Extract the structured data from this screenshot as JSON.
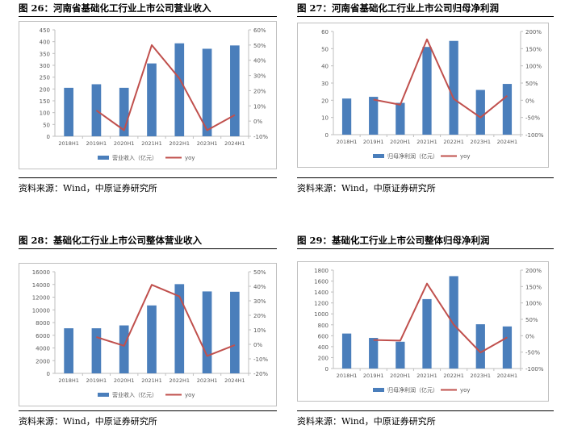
{
  "charts": [
    {
      "title": "图 26：河南省基础化工行业上市公司营业收入",
      "source": "资料来源：Wind，中原证券研究所",
      "chart_data": {
        "type": "bar",
        "categories": [
          "2018H1",
          "2019H1",
          "2020H1",
          "2021H1",
          "2022H1",
          "2023H1",
          "2024H1"
        ],
        "series": [
          {
            "name": "营业收入（亿元）",
            "type": "bar",
            "axis": "left",
            "values": [
              205,
              220,
              205,
              308,
              393,
              370,
              384
            ]
          },
          {
            "name": "yoy",
            "type": "line",
            "axis": "right",
            "values": [
              null,
              7,
              -6,
              50,
              28,
              -6,
              4
            ]
          }
        ],
        "ylim": [
          0,
          450
        ],
        "yticks": [
          0,
          50,
          100,
          150,
          200,
          250,
          300,
          350,
          400,
          450
        ],
        "y2lim": [
          -10,
          60
        ],
        "y2ticks": [
          -10,
          0,
          10,
          20,
          30,
          40,
          50,
          60
        ],
        "y2unit": "%",
        "grid": false,
        "legend": "bottom"
      }
    },
    {
      "title": "图 27：河南省基础化工行业上市公司归母净利润",
      "source": "资料来源：Wind，中原证券研究所",
      "chart_data": {
        "type": "bar",
        "categories": [
          "2018H1",
          "2019H1",
          "2020H1",
          "2021H1",
          "2022H1",
          "2023H1",
          "2024H1"
        ],
        "series": [
          {
            "name": "归母净利润（亿元）",
            "type": "bar",
            "axis": "left",
            "values": [
              21,
              22,
              18.5,
              51,
              54.5,
              26,
              29.5
            ]
          },
          {
            "name": "yoy",
            "type": "line",
            "axis": "right",
            "values": [
              null,
              2,
              -13,
              177,
              4,
              -50,
              13
            ]
          }
        ],
        "ylim": [
          0,
          60
        ],
        "yticks": [
          0,
          10,
          20,
          30,
          40,
          50,
          60
        ],
        "y2lim": [
          -100,
          200
        ],
        "y2ticks": [
          -100,
          -50,
          0,
          50,
          100,
          150,
          200
        ],
        "y2unit": "%",
        "grid": false,
        "legend": "bottom"
      }
    },
    {
      "title": "图 28：基础化工行业上市公司整体营业收入",
      "source": "资料来源：Wind，中原证券研究所",
      "chart_data": {
        "type": "bar",
        "categories": [
          "2018H1",
          "2019H1",
          "2020H1",
          "2021H1",
          "2022H1",
          "2023H1",
          "2024H1"
        ],
        "series": [
          {
            "name": "营业收入（亿元）",
            "type": "bar",
            "axis": "left",
            "values": [
              7100,
              7100,
              7550,
              10700,
              14050,
              12900,
              12850
            ]
          },
          {
            "name": "yoy",
            "type": "line",
            "axis": "right",
            "values": [
              null,
              5,
              -1,
              41,
              33,
              -8,
              -0.5
            ]
          }
        ],
        "ylim": [
          0,
          16000
        ],
        "yticks": [
          0,
          2000,
          4000,
          6000,
          8000,
          10000,
          12000,
          14000,
          16000
        ],
        "y2lim": [
          -20,
          50
        ],
        "y2ticks": [
          -20,
          -10,
          0,
          10,
          20,
          30,
          40,
          50
        ],
        "y2unit": "%",
        "grid": false,
        "legend": "bottom"
      }
    },
    {
      "title": "图 29：基础化工行业上市公司整体归母净利润",
      "source": "资料来源：Wind，中原证券研究所",
      "chart_data": {
        "type": "bar",
        "categories": [
          "2018H1",
          "2019H1",
          "2020H1",
          "2021H1",
          "2022H1",
          "2023H1",
          "2024H1"
        ],
        "series": [
          {
            "name": "归母净利润（亿元）",
            "type": "bar",
            "axis": "left",
            "values": [
              640,
              560,
              490,
              1270,
              1690,
              810,
              770
            ]
          },
          {
            "name": "yoy",
            "type": "line",
            "axis": "right",
            "values": [
              null,
              -13,
              -15,
              159,
              34,
              -51,
              -5
            ]
          }
        ],
        "ylim": [
          0,
          1800
        ],
        "yticks": [
          0,
          200,
          400,
          600,
          800,
          1000,
          1200,
          1400,
          1600,
          1800
        ],
        "y2lim": [
          -100,
          200
        ],
        "y2ticks": [
          -100,
          -50,
          0,
          50,
          100,
          150,
          200
        ],
        "y2unit": "%",
        "grid": false,
        "legend": "bottom"
      }
    }
  ],
  "colors": {
    "bar": "#4a7ebb",
    "line": "#c0504d",
    "axis": "#bfbfbf",
    "text": "#595959"
  }
}
